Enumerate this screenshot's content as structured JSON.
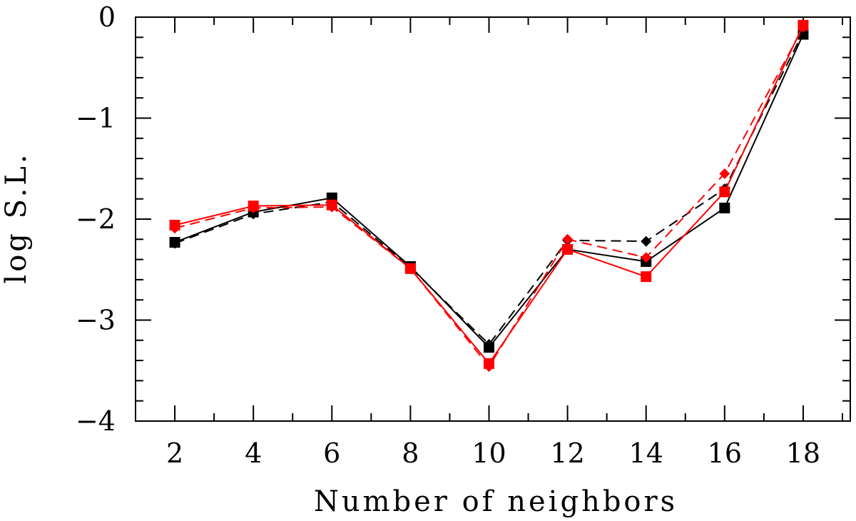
{
  "chart_data": {
    "type": "line",
    "title": "",
    "xlabel": "Number of neighbors",
    "ylabel": "log S.L.",
    "xlim": [
      1,
      19.2
    ],
    "ylim": [
      -4,
      0
    ],
    "x_ticks": [
      2,
      4,
      6,
      8,
      10,
      12,
      14,
      16,
      18
    ],
    "y_ticks": [
      0,
      -1,
      -2,
      -3,
      -4
    ],
    "y_tick_labels": [
      "0",
      "−1",
      "−2",
      "−3",
      "−4"
    ],
    "grid": false,
    "legend": "none",
    "x": [
      2,
      4,
      6,
      8,
      10,
      12,
      14,
      16,
      18
    ],
    "series": [
      {
        "color": "#000000",
        "line": "solid",
        "marker": "square",
        "values": [
          -2.23,
          -1.93,
          -1.79,
          -2.47,
          -3.27,
          -2.3,
          -2.42,
          -1.89,
          -0.17
        ]
      },
      {
        "color": "#000000",
        "line": "dashed",
        "marker": "diamond",
        "values": [
          -2.24,
          -1.95,
          -1.83,
          -2.48,
          -3.24,
          -2.21,
          -2.22,
          -1.7,
          -0.15
        ]
      },
      {
        "color": "#ff0000",
        "line": "solid",
        "marker": "square",
        "values": [
          -2.06,
          -1.87,
          -1.86,
          -2.49,
          -3.43,
          -2.3,
          -2.57,
          -1.73,
          -0.08
        ]
      },
      {
        "color": "#ff0000",
        "line": "dashed",
        "marker": "diamond",
        "values": [
          -2.09,
          -1.89,
          -1.88,
          -2.49,
          -3.46,
          -2.2,
          -2.38,
          -1.55,
          -0.1
        ]
      }
    ]
  }
}
